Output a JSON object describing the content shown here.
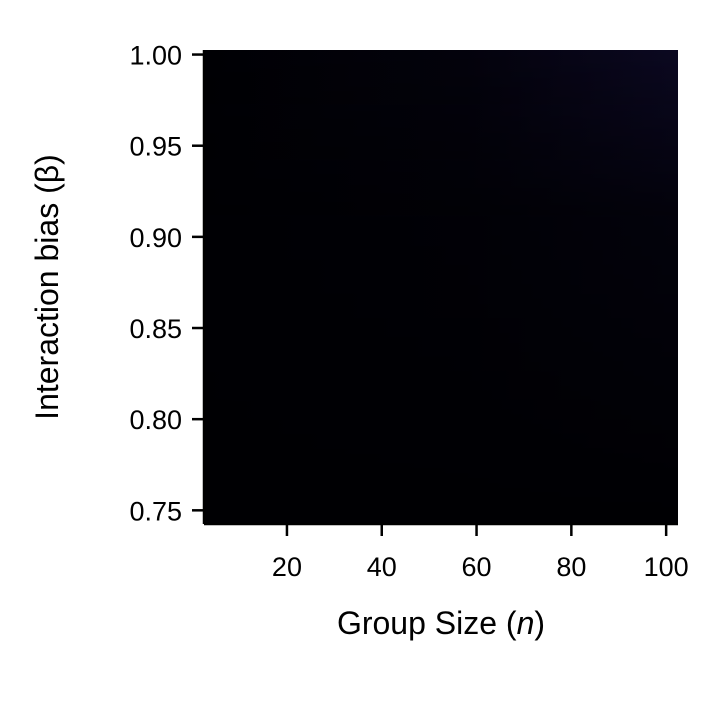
{
  "chart_data": {
    "type": "heatmap",
    "title": "",
    "xlabel": {
      "text": "Group Size (",
      "symbol": "n",
      "close": ")"
    },
    "ylabel": "Interaction bias (β)",
    "x_ticks": [
      20,
      40,
      60,
      80,
      100
    ],
    "x_tick_labels": [
      "20",
      "40",
      "60",
      "80",
      "100"
    ],
    "y_ticks": [
      0.75,
      0.8,
      0.85,
      0.9,
      0.95,
      1.0
    ],
    "y_tick_labels": [
      "0.75",
      "0.80",
      "0.85",
      "0.90",
      "0.95",
      "1.00"
    ],
    "xlim": [
      2.5,
      102.5
    ],
    "ylim": [
      0.7425,
      1.0025
    ],
    "grid": false,
    "colormap": "magma",
    "colors": {
      "low": "#000004",
      "high": "#0b0821"
    },
    "value_range": [
      0,
      1
    ],
    "corner_values": {
      "low_n_low_beta": 0.0,
      "high_n_low_beta": 0.0,
      "low_n_high_beta": 0.01,
      "high_n_high_beta": 0.06
    }
  }
}
